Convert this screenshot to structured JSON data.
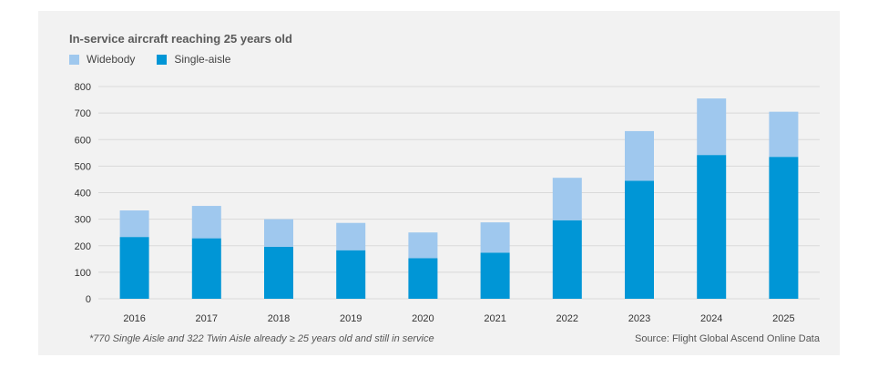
{
  "chart_data": {
    "type": "bar",
    "stacked": true,
    "title": "In-service aircraft reaching 25 years old",
    "categories": [
      "2016",
      "2017",
      "2018",
      "2019",
      "2020",
      "2021",
      "2022",
      "2023",
      "2024",
      "2025"
    ],
    "series": [
      {
        "name": "Single-aisle",
        "color": "#0096d6",
        "values": [
          233,
          228,
          196,
          183,
          153,
          174,
          296,
          445,
          542,
          535
        ]
      },
      {
        "name": "Widebody",
        "color": "#9fc8ee",
        "values": [
          100,
          122,
          104,
          103,
          97,
          114,
          160,
          187,
          213,
          170
        ]
      }
    ],
    "legend_order": [
      "Widebody",
      "Single-aisle"
    ],
    "ylim": [
      0,
      800
    ],
    "yticks": [
      "0",
      "100",
      "200",
      "300",
      "400",
      "500",
      "600",
      "700",
      "800"
    ],
    "grid": true,
    "legend_position": "top-left",
    "footnote": "*770 Single Aisle and 322 Twin Aisle already ≥ 25 years old and still in service",
    "source": "Source: Flight Global Ascend Online Data"
  }
}
